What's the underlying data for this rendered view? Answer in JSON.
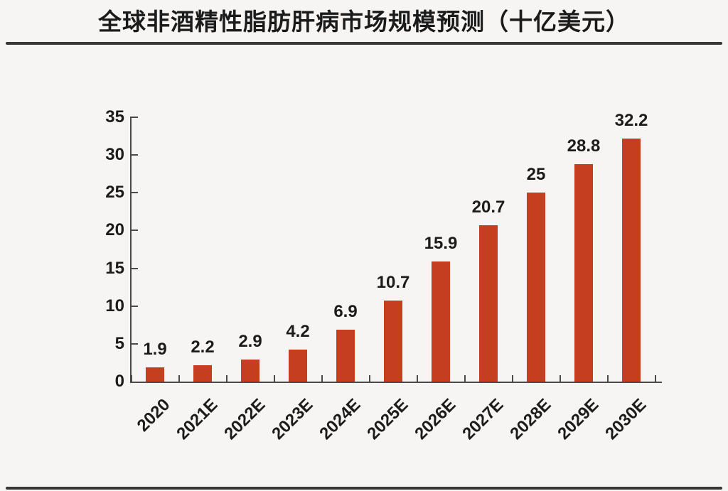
{
  "chart_data": {
    "type": "bar",
    "title": "全球非酒精性脂肪肝病市场规模预测（十亿美元）",
    "categories": [
      "2020",
      "2021E",
      "2022E",
      "2023E",
      "2024E",
      "2025E",
      "2026E",
      "2027E",
      "2028E",
      "2029E",
      "2030E"
    ],
    "values": [
      1.9,
      2.2,
      2.9,
      4.2,
      6.9,
      10.7,
      15.9,
      20.7,
      25,
      28.8,
      32.2
    ],
    "value_labels": [
      "1.9",
      "2.2",
      "2.9",
      "4.2",
      "6.9",
      "10.7",
      "15.9",
      "20.7",
      "25",
      "28.8",
      "32.2"
    ],
    "xlabel": "",
    "ylabel": "",
    "ylim": [
      0,
      35
    ],
    "yticks": [
      0,
      5,
      10,
      15,
      20,
      25,
      30,
      35
    ],
    "grid": false,
    "legend": "none",
    "bar_color": "#c63e20",
    "axis_color": "#4a4a4a",
    "text_color": "#1c1c1c",
    "title_color": "#1b1b1b",
    "rule_color": "#383838",
    "background_color": "#f7f5f3"
  }
}
